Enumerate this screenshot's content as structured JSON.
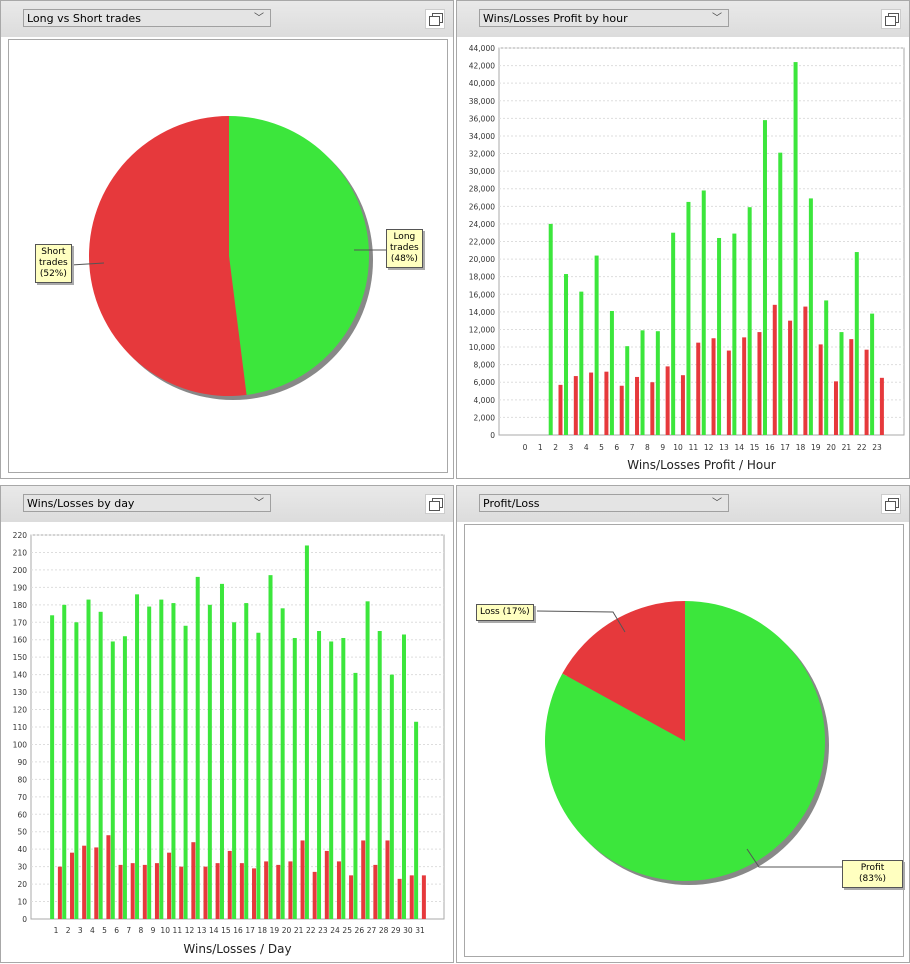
{
  "panels": [
    {
      "title": "Long vs Short trades"
    },
    {
      "title": "Wins/Losses Profit by hour"
    },
    {
      "title": "Wins/Losses by day"
    },
    {
      "title": "Profit/Loss"
    }
  ],
  "colors": {
    "win": "#3ce63c",
    "loss": "#e6393c"
  },
  "chart_data": [
    {
      "type": "pie",
      "title": "Long vs Short trades",
      "slices": [
        {
          "name": "Long trades",
          "value": 48,
          "label": "Long trades (48%)",
          "color": "#3ce63c"
        },
        {
          "name": "Short trades",
          "value": 52,
          "label": "Short trades (52%)",
          "color": "#e6393c"
        }
      ],
      "labels": {
        "short": [
          "Short",
          "trades",
          "(52%)"
        ],
        "long": [
          "Long",
          "trades",
          "(48%)"
        ]
      }
    },
    {
      "type": "bar",
      "title": "Wins/Losses Profit by hour",
      "xlabel": "Wins/Losses Profit / Hour",
      "ylim": [
        0,
        44000
      ],
      "yticks": [
        0,
        2000,
        4000,
        6000,
        8000,
        10000,
        12000,
        14000,
        16000,
        18000,
        20000,
        22000,
        24000,
        26000,
        28000,
        30000,
        32000,
        34000,
        36000,
        38000,
        40000,
        42000,
        44000
      ],
      "grid": true,
      "categories": [
        "0",
        "1",
        "2",
        "3",
        "4",
        "5",
        "6",
        "7",
        "8",
        "9",
        "10",
        "11",
        "12",
        "13",
        "14",
        "15",
        "16",
        "17",
        "18",
        "19",
        "20",
        "21",
        "22",
        "23"
      ],
      "series": [
        {
          "values": [
            0,
            0,
            24000,
            18300,
            16300,
            20400,
            14100,
            10100,
            11900,
            11800,
            23000,
            26500,
            27800,
            22400,
            22900,
            25900,
            35800,
            32100,
            42400,
            26900,
            15300,
            11700,
            20800,
            13800
          ],
          "color": "#3ce63c"
        },
        {
          "values": [
            0,
            0,
            5700,
            6700,
            7100,
            7200,
            5600,
            6600,
            6000,
            7800,
            6800,
            10500,
            11000,
            9600,
            11100,
            11700,
            14800,
            13000,
            14600,
            10300,
            6100,
            10900,
            9700,
            6500
          ],
          "color": "#e6393c"
        }
      ]
    },
    {
      "type": "bar",
      "title": "Wins/Losses by day",
      "xlabel": "Wins/Losses / Day",
      "ylim": [
        0,
        220
      ],
      "yticks": [
        0,
        10,
        20,
        30,
        40,
        50,
        60,
        70,
        80,
        90,
        100,
        110,
        120,
        130,
        140,
        150,
        160,
        170,
        180,
        190,
        200,
        210,
        220
      ],
      "grid": true,
      "categories": [
        "1",
        "2",
        "3",
        "4",
        "5",
        "6",
        "7",
        "8",
        "9",
        "10",
        "11",
        "12",
        "13",
        "14",
        "15",
        "16",
        "17",
        "18",
        "19",
        "20",
        "21",
        "22",
        "23",
        "24",
        "25",
        "26",
        "27",
        "28",
        "29",
        "30",
        "31"
      ],
      "series": [
        {
          "values": [
            174,
            180,
            170,
            183,
            176,
            159,
            162,
            186,
            179,
            183,
            181,
            168,
            196,
            180,
            192,
            170,
            181,
            164,
            197,
            178,
            161,
            214,
            165,
            159,
            161,
            141,
            182,
            165,
            140,
            163,
            113
          ],
          "color": "#3ce63c"
        },
        {
          "values": [
            30,
            38,
            42,
            41,
            48,
            31,
            32,
            31,
            32,
            38,
            30,
            44,
            30,
            32,
            39,
            32,
            29,
            33,
            31,
            33,
            45,
            27,
            39,
            33,
            25,
            45,
            31,
            45,
            23,
            25,
            25
          ],
          "color": "#e6393c"
        }
      ]
    },
    {
      "type": "pie",
      "title": "Profit/Loss",
      "slices": [
        {
          "name": "Profit",
          "value": 83,
          "label": "Profit (83%)",
          "color": "#3ce63c"
        },
        {
          "name": "Loss",
          "value": 17,
          "label": "Loss (17%)",
          "color": "#e6393c"
        }
      ]
    }
  ]
}
